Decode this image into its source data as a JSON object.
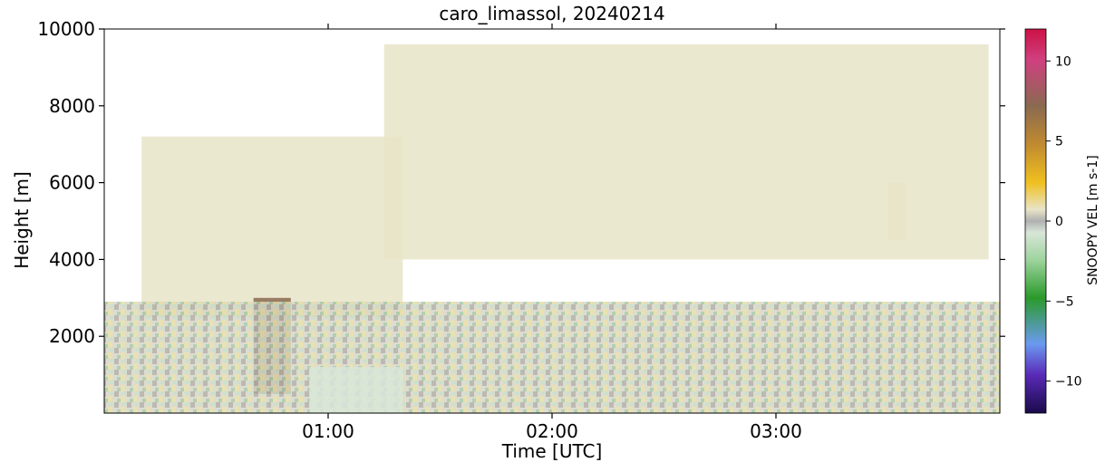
{
  "chart_data": {
    "type": "heatmap",
    "title": "caro_limassol, 20240214",
    "xlabel": "Time [UTC]",
    "ylabel": "Height [m]",
    "xlim": [
      "00:00",
      "04:00"
    ],
    "ylim": [
      0,
      10000
    ],
    "x_ticks": [
      "01:00",
      "02:00",
      "03:00"
    ],
    "y_ticks": [
      2000,
      4000,
      6000,
      8000,
      10000
    ],
    "colorbar": {
      "label": "SNOOPY VEL [m s-1]",
      "range": [
        -12,
        12
      ],
      "ticks": [
        10,
        5,
        0,
        -5,
        -10
      ],
      "colors": [
        "#1a0a4a",
        "#5a2ab8",
        "#6a9af0",
        "#2a9a2a",
        "#9fd49f",
        "#d8e6d8",
        "#b0b0b0",
        "#e8e4c8",
        "#f0c020",
        "#c08a30",
        "#8a6a50",
        "#d04080",
        "#cc1144"
      ]
    },
    "regions": [
      {
        "description": "upper cloud layer, descending velocities",
        "time_start": "00:10",
        "time_end": "01:20",
        "height_top": 7200,
        "height_bottom": 2500,
        "velocity": -2
      },
      {
        "description": "strong downdrafts",
        "time_start": "00:40",
        "time_end": "00:50",
        "height_top": 3000,
        "height_bottom": 500,
        "velocity": -7
      },
      {
        "description": "rising cloud base layer",
        "time_start": "01:15",
        "time_end": "03:57",
        "height_top": 9600,
        "height_bottom": 4000,
        "velocity": -2
      },
      {
        "description": "isolated cloud patch",
        "time_start": "03:30",
        "time_end": "03:35",
        "height_top": 6000,
        "height_bottom": 4500,
        "velocity": -2
      },
      {
        "description": "boundary layer turbulence",
        "time_start": "00:00",
        "time_end": "04:00",
        "height_top": 2900,
        "height_bottom": 0,
        "velocity": 0
      },
      {
        "description": "falling precipitation",
        "time_start": "00:55",
        "time_end": "01:20",
        "height_top": 1200,
        "height_bottom": 0,
        "velocity": 3
      }
    ]
  }
}
